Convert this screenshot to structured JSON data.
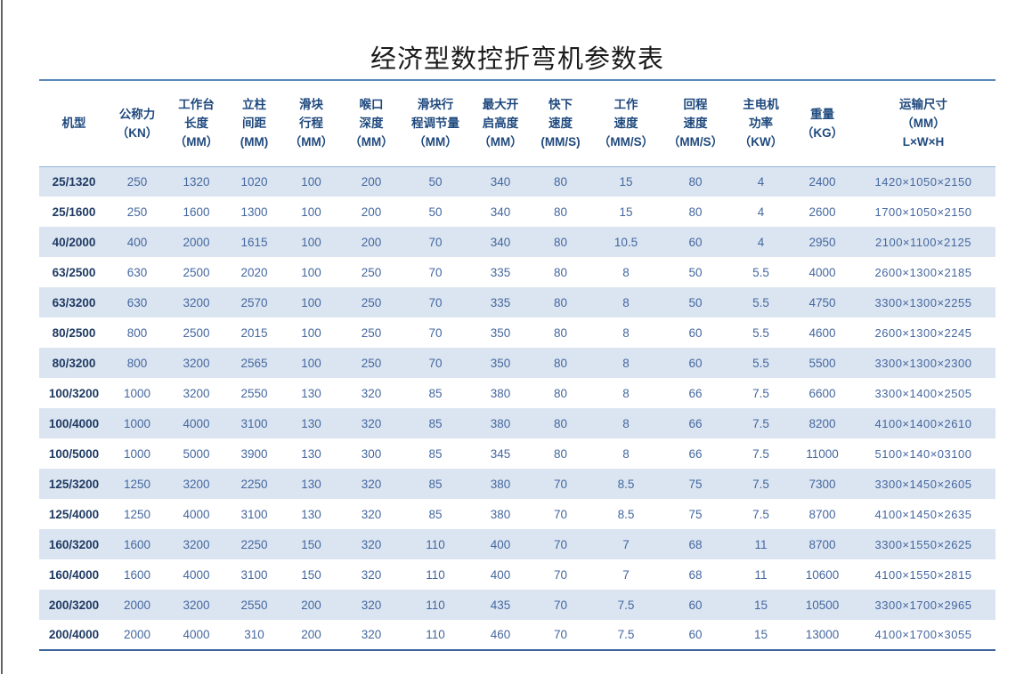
{
  "page": {
    "title": "经济型数控折弯机参数表"
  },
  "table": {
    "columns": [
      {
        "id": "model",
        "lines": [
          "机型"
        ]
      },
      {
        "id": "nominal-force",
        "lines": [
          "公称力",
          "（KN）"
        ]
      },
      {
        "id": "worktable-length",
        "lines": [
          "工作台",
          "长度",
          "（MM）"
        ]
      },
      {
        "id": "column-distance",
        "lines": [
          "立柱",
          "间距",
          "(MM)"
        ]
      },
      {
        "id": "ram-stroke",
        "lines": [
          "滑块",
          "行程",
          "（MM）"
        ]
      },
      {
        "id": "throat-depth",
        "lines": [
          "喉口",
          "深度",
          "（MM）"
        ]
      },
      {
        "id": "stroke-adjust",
        "lines": [
          "滑块行",
          "程调节量",
          "（MM）"
        ]
      },
      {
        "id": "max-open-height",
        "lines": [
          "最大开",
          "启高度",
          "（MM）"
        ]
      },
      {
        "id": "fast-down-speed",
        "lines": [
          "快下",
          "速度",
          "(MM/S)"
        ]
      },
      {
        "id": "working-speed",
        "lines": [
          "工作",
          "速度",
          "（MM/S）"
        ]
      },
      {
        "id": "return-speed",
        "lines": [
          "回程",
          "速度",
          "（MM/S）"
        ]
      },
      {
        "id": "motor-power",
        "lines": [
          "主电机",
          "功率",
          "（KW）"
        ]
      },
      {
        "id": "weight",
        "lines": [
          "重量",
          "（KG）"
        ]
      },
      {
        "id": "transport-size",
        "lines": [
          "运输尺寸",
          "（MM）",
          "L×W×H"
        ]
      }
    ],
    "rows": [
      [
        "25/1320",
        "250",
        "1320",
        "1020",
        "100",
        "200",
        "50",
        "340",
        "80",
        "15",
        "80",
        "4",
        "2400",
        "1420×1050×2150"
      ],
      [
        "25/1600",
        "250",
        "1600",
        "1300",
        "100",
        "200",
        "50",
        "340",
        "80",
        "15",
        "80",
        "4",
        "2600",
        "1700×1050×2150"
      ],
      [
        "40/2000",
        "400",
        "2000",
        "1615",
        "100",
        "200",
        "70",
        "340",
        "80",
        "10.5",
        "60",
        "4",
        "2950",
        "2100×1100×2125"
      ],
      [
        "63/2500",
        "630",
        "2500",
        "2020",
        "100",
        "250",
        "70",
        "335",
        "80",
        "8",
        "50",
        "5.5",
        "4000",
        "2600×1300×2185"
      ],
      [
        "63/3200",
        "630",
        "3200",
        "2570",
        "100",
        "250",
        "70",
        "335",
        "80",
        "8",
        "50",
        "5.5",
        "4750",
        "3300×1300×2255"
      ],
      [
        "80/2500",
        "800",
        "2500",
        "2015",
        "100",
        "250",
        "70",
        "350",
        "80",
        "8",
        "60",
        "5.5",
        "4600",
        "2600×1300×2245"
      ],
      [
        "80/3200",
        "800",
        "3200",
        "2565",
        "100",
        "250",
        "70",
        "350",
        "80",
        "8",
        "60",
        "5.5",
        "5500",
        "3300×1300×2300"
      ],
      [
        "100/3200",
        "1000",
        "3200",
        "2550",
        "130",
        "320",
        "85",
        "380",
        "80",
        "8",
        "66",
        "7.5",
        "6600",
        "3300×1400×2505"
      ],
      [
        "100/4000",
        "1000",
        "4000",
        "3100",
        "130",
        "320",
        "85",
        "380",
        "80",
        "8",
        "66",
        "7.5",
        "8200",
        "4100×1400×2610"
      ],
      [
        "100/5000",
        "1000",
        "5000",
        "3900",
        "130",
        "300",
        "85",
        "345",
        "80",
        "8",
        "66",
        "7.5",
        "11000",
        "5100×140×03100"
      ],
      [
        "125/3200",
        "1250",
        "3200",
        "2250",
        "130",
        "320",
        "85",
        "380",
        "70",
        "8.5",
        "75",
        "7.5",
        "7300",
        "3300×1450×2605"
      ],
      [
        "125/4000",
        "1250",
        "4000",
        "3100",
        "130",
        "320",
        "85",
        "380",
        "70",
        "8.5",
        "75",
        "7.5",
        "8700",
        "4100×1450×2635"
      ],
      [
        "160/3200",
        "1600",
        "3200",
        "2250",
        "150",
        "320",
        "110",
        "400",
        "70",
        "7",
        "68",
        "11",
        "8700",
        "3300×1550×2625"
      ],
      [
        "160/4000",
        "1600",
        "4000",
        "3100",
        "150",
        "320",
        "110",
        "400",
        "70",
        "7",
        "68",
        "11",
        "10600",
        "4100×1550×2815"
      ],
      [
        "200/3200",
        "2000",
        "3200",
        "2550",
        "200",
        "320",
        "110",
        "435",
        "70",
        "7.5",
        "60",
        "15",
        "10500",
        "3300×1700×2965"
      ],
      [
        "200/4000",
        "2000",
        "4000",
        "310",
        "200",
        "320",
        "110",
        "460",
        "70",
        "7.5",
        "60",
        "15",
        "13000",
        "4100×1700×3055"
      ]
    ]
  },
  "colors": {
    "accent_line_top": "#5b87b7",
    "accent_line_bottom": "#3f639b",
    "header_underline": "#8eb4d8",
    "stripe": "#dbe5f1",
    "header_text": "#1f497d",
    "data_text": "#44679f",
    "model_text": "#1f3a63"
  }
}
